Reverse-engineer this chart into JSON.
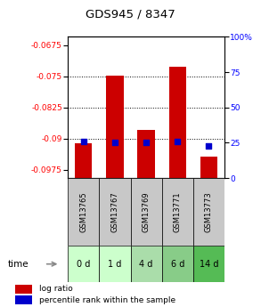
{
  "title": "GDS945 / 8347",
  "categories": [
    "GSM13765",
    "GSM13767",
    "GSM13769",
    "GSM13771",
    "GSM13773"
  ],
  "time_labels": [
    "0 d",
    "1 d",
    "4 d",
    "6 d",
    "14 d"
  ],
  "log_ratio": [
    -0.0912,
    -0.0748,
    -0.088,
    -0.0727,
    -0.0943
  ],
  "percentile_rank": [
    26,
    25,
    25,
    26,
    23
  ],
  "ylim_left": [
    -0.0995,
    -0.0655
  ],
  "ylim_right": [
    0,
    100
  ],
  "yticks_left": [
    -0.0975,
    -0.09,
    -0.0825,
    -0.075,
    -0.0675
  ],
  "yticks_right": [
    0,
    25,
    50,
    75,
    100
  ],
  "hlines": [
    -0.075,
    -0.0825,
    -0.09
  ],
  "bar_color": "#cc0000",
  "dot_color": "#0000cc",
  "bg_color_samples": "#c8c8c8",
  "green_colors": [
    "#ccffcc",
    "#ccffcc",
    "#aaddaa",
    "#88cc88",
    "#55bb55"
  ],
  "legend_bar_label": "log ratio",
  "legend_dot_label": "percentile rank within the sample",
  "time_label": "time"
}
